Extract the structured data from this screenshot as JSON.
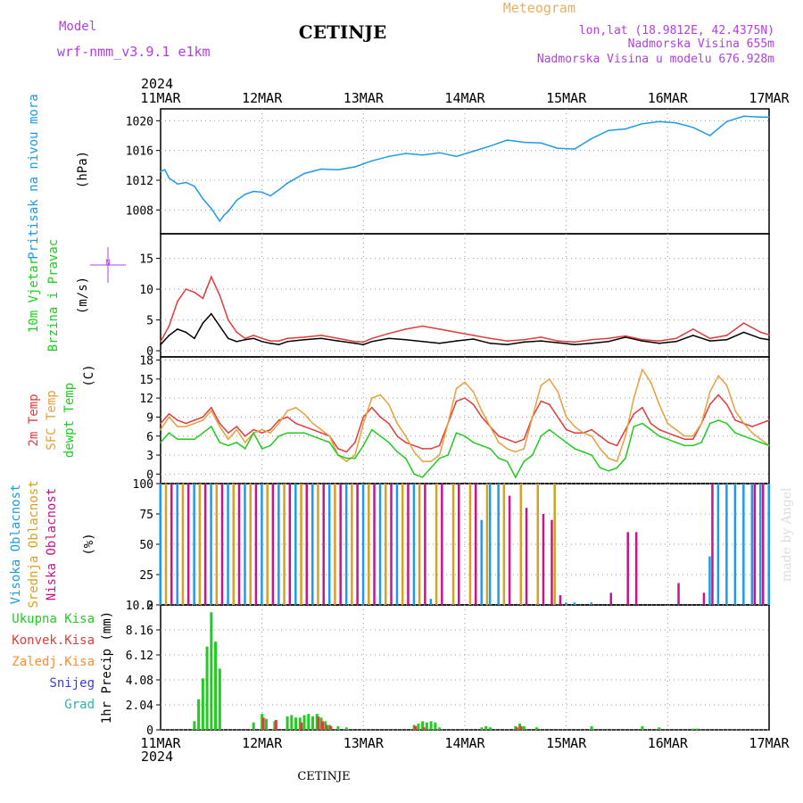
{
  "header": {
    "model_label": "Model",
    "model_name": "wrf-nmm_v3.9.1 e1km",
    "station": "CETINJE",
    "meteogram_label": "Meteogram",
    "lonlat": "lon,lat (18.9812E, 42.4375N)",
    "altitude": "Nadmorska Visina 655m",
    "model_altitude": "Nadmorska Visina u modelu 676.928m",
    "watermark": "made by Angel",
    "footer_station": "CETINJE"
  },
  "time_axis": {
    "year": "2024",
    "labels": [
      "11MAR",
      "12MAR",
      "13MAR",
      "14MAR",
      "15MAR",
      "16MAR",
      "17MAR"
    ],
    "hours": 144
  },
  "chart_data": [
    {
      "type": "line",
      "panel": "pressure",
      "ylabel_left": "Pritisak na nivou mora",
      "ylabel_unit": "(hPa)",
      "ylim": [
        1004.8,
        1021.6
      ],
      "yticks": [
        1008,
        1012,
        1016,
        1020
      ],
      "x_hours": [
        0,
        1,
        2,
        4,
        6,
        8,
        10,
        12,
        14,
        15,
        16,
        18,
        20,
        22,
        24,
        26,
        28,
        30,
        34,
        38,
        42,
        46,
        50,
        54,
        58,
        62,
        66,
        70,
        74,
        78,
        82,
        86,
        90,
        94,
        98,
        102,
        106,
        110,
        114,
        118,
        122,
        126,
        130,
        134,
        138,
        142,
        144
      ],
      "series": [
        {
          "color": "#1e9be6",
          "values": [
            1013.2,
            1013.4,
            1012.3,
            1011.5,
            1011.7,
            1011.2,
            1009.5,
            1008.2,
            1006.5,
            1007.3,
            1007.8,
            1009.3,
            1010.1,
            1010.5,
            1010.4,
            1009.9,
            1010.7,
            1011.6,
            1012.9,
            1013.5,
            1013.4,
            1013.8,
            1014.6,
            1015.2,
            1015.6,
            1015.4,
            1015.7,
            1015.2,
            1015.9,
            1016.6,
            1017.4,
            1017.1,
            1017.0,
            1016.3,
            1016.2,
            1017.6,
            1018.7,
            1018.9,
            1019.6,
            1019.9,
            1019.7,
            1019.1,
            1018.0,
            1019.9,
            1020.6,
            1020.5,
            1020.5
          ]
        }
      ]
    },
    {
      "type": "line",
      "panel": "wind",
      "ylabel_left": [
        "10m Vjetar",
        "Brzina i Pravac"
      ],
      "ylabel_unit": "(m/s)",
      "compass": "N",
      "ylim": [
        -1,
        19
      ],
      "yticks": [
        0,
        5,
        10,
        15
      ],
      "x_hours": [
        0,
        2,
        4,
        6,
        8,
        10,
        12,
        14,
        16,
        18,
        20,
        22,
        24,
        26,
        28,
        30,
        34,
        38,
        42,
        46,
        48,
        50,
        54,
        58,
        62,
        66,
        70,
        74,
        78,
        82,
        86,
        90,
        94,
        98,
        102,
        106,
        110,
        114,
        118,
        122,
        126,
        130,
        134,
        138,
        142,
        144
      ],
      "series": [
        {
          "color": "#000000",
          "values": [
            1.0,
            2.5,
            3.5,
            3.0,
            2.0,
            4.5,
            6.0,
            4.0,
            2.0,
            1.5,
            1.8,
            2.0,
            1.5,
            1.2,
            1.0,
            1.5,
            1.8,
            2.0,
            1.6,
            1.2,
            1.0,
            1.5,
            2.0,
            1.8,
            1.5,
            1.2,
            1.6,
            1.9,
            1.2,
            1.0,
            1.4,
            1.6,
            1.3,
            1.0,
            1.2,
            1.5,
            2.2,
            1.6,
            1.2,
            1.5,
            2.5,
            1.6,
            1.8,
            3.0,
            2.0,
            1.8
          ]
        },
        {
          "color": "#e03c3c",
          "values": [
            1.5,
            4.0,
            8.0,
            10.0,
            9.5,
            8.5,
            12.0,
            9.0,
            5.0,
            3.0,
            2.0,
            2.5,
            2.0,
            1.6,
            1.6,
            2.0,
            2.2,
            2.5,
            2.0,
            1.5,
            1.4,
            2.0,
            2.8,
            3.5,
            4.0,
            3.5,
            3.0,
            2.5,
            2.0,
            1.6,
            1.8,
            2.2,
            1.6,
            1.4,
            1.8,
            2.0,
            2.4,
            1.8,
            1.6,
            2.0,
            3.5,
            2.0,
            2.5,
            4.5,
            3.0,
            2.6
          ]
        }
      ]
    },
    {
      "type": "line",
      "panel": "temperature",
      "ylabel_left": [
        "2m Temp",
        "SFC Temp",
        "dewpt Temp"
      ],
      "ylabel_unit": "(C)",
      "ylim": [
        -1.5,
        18.5
      ],
      "yticks": [
        0,
        3,
        6,
        9,
        12,
        15,
        18
      ],
      "x_hours": [
        0,
        2,
        4,
        6,
        8,
        10,
        12,
        14,
        16,
        18,
        20,
        22,
        24,
        26,
        28,
        30,
        32,
        34,
        36,
        38,
        40,
        42,
        44,
        46,
        48,
        50,
        52,
        54,
        56,
        58,
        60,
        62,
        64,
        66,
        68,
        70,
        72,
        74,
        76,
        78,
        80,
        82,
        84,
        86,
        88,
        90,
        92,
        94,
        96,
        98,
        100,
        102,
        104,
        106,
        108,
        110,
        112,
        114,
        116,
        118,
        120,
        122,
        124,
        126,
        128,
        130,
        132,
        134,
        136,
        138,
        140,
        142,
        144
      ],
      "series": [
        {
          "name": "2m Temp",
          "color": "#e03c3c",
          "values": [
            8.0,
            9.5,
            8.5,
            8.0,
            8.5,
            9.0,
            10.5,
            8.0,
            6.5,
            7.5,
            6.0,
            7.0,
            6.5,
            7.0,
            8.5,
            9.0,
            8.0,
            7.5,
            7.0,
            6.5,
            6.0,
            4.0,
            3.5,
            5.0,
            9.0,
            10.5,
            9.0,
            8.0,
            6.0,
            5.0,
            4.5,
            4.0,
            4.0,
            4.5,
            8.0,
            11.5,
            12.0,
            11.0,
            9.0,
            7.5,
            6.0,
            5.5,
            5.0,
            5.5,
            9.0,
            11.5,
            11.0,
            9.0,
            7.0,
            6.5,
            6.5,
            7.0,
            6.0,
            5.0,
            4.5,
            7.0,
            9.5,
            10.5,
            8.0,
            7.0,
            6.5,
            6.0,
            5.5,
            5.5,
            8.0,
            11.0,
            12.5,
            11.0,
            8.5,
            8.0,
            7.5,
            8.0,
            8.5
          ]
        },
        {
          "name": "SFC Temp",
          "color": "#e6a03c",
          "values": [
            7.0,
            9.0,
            7.5,
            7.5,
            8.0,
            8.5,
            10.0,
            7.5,
            5.5,
            7.0,
            5.0,
            6.5,
            7.0,
            6.5,
            8.0,
            10.0,
            10.5,
            9.5,
            8.0,
            7.0,
            6.0,
            3.0,
            2.0,
            3.0,
            8.0,
            12.0,
            12.5,
            11.0,
            8.0,
            6.0,
            3.5,
            2.0,
            2.0,
            3.0,
            8.0,
            13.5,
            14.5,
            13.0,
            10.0,
            7.5,
            5.0,
            4.0,
            3.5,
            4.0,
            9.0,
            14.0,
            15.0,
            13.0,
            9.0,
            7.5,
            6.5,
            6.0,
            4.0,
            2.5,
            2.0,
            6.0,
            12.0,
            16.5,
            14.5,
            11.0,
            8.0,
            7.0,
            6.0,
            6.0,
            8.0,
            13.0,
            15.5,
            14.0,
            10.0,
            8.0,
            6.5,
            5.5,
            4.5
          ]
        },
        {
          "name": "dewpt Temp",
          "color": "#1fcc1f",
          "values": [
            5.0,
            6.5,
            5.5,
            5.5,
            5.5,
            6.5,
            7.5,
            5.0,
            4.5,
            5.0,
            4.0,
            6.5,
            4.0,
            4.5,
            6.0,
            6.5,
            6.5,
            6.5,
            6.0,
            5.5,
            5.0,
            3.0,
            2.5,
            2.5,
            4.5,
            7.0,
            6.0,
            5.0,
            3.5,
            2.5,
            0.0,
            -0.5,
            1.0,
            2.5,
            3.0,
            6.5,
            6.0,
            5.0,
            4.5,
            4.0,
            2.5,
            2.0,
            -0.5,
            2.0,
            3.0,
            6.0,
            7.0,
            6.0,
            5.0,
            4.0,
            3.5,
            3.0,
            1.0,
            0.5,
            1.0,
            2.5,
            7.5,
            8.0,
            7.0,
            6.0,
            5.5,
            5.0,
            4.5,
            4.5,
            5.0,
            8.0,
            8.5,
            8.0,
            6.5,
            6.0,
            5.5,
            5.0,
            4.5
          ]
        }
      ]
    },
    {
      "type": "bar",
      "panel": "cloud_cover",
      "ylabel_left": [
        "Visoka Oblacnost",
        "Srednja Oblacnost",
        "Niska Oblacnost"
      ],
      "ylabel_unit": "(%)",
      "ylim": [
        0,
        100
      ],
      "yticks": [
        0,
        25,
        50,
        75,
        100
      ],
      "series": [
        {
          "name": "Visoka Oblacnost",
          "color": "#1e9be6",
          "x_hours": [
            0,
            4,
            8,
            12,
            16,
            20,
            24,
            28,
            32,
            36,
            40,
            44,
            48,
            52,
            56,
            60,
            64,
            76,
            78,
            80,
            96,
            98,
            102,
            130,
            132,
            134,
            136,
            138,
            140,
            142,
            144
          ],
          "values": [
            100,
            100,
            100,
            100,
            100,
            100,
            100,
            100,
            100,
            100,
            100,
            100,
            100,
            100,
            100,
            100,
            5,
            70,
            100,
            100,
            2,
            2,
            2,
            40,
            100,
            100,
            100,
            100,
            100,
            100,
            100
          ]
        },
        {
          "name": "Srednja Oblacnost",
          "color": "#d8a020",
          "x_hours": [
            1,
            5,
            9,
            13,
            17,
            21,
            25,
            29,
            33,
            37,
            41,
            45,
            49,
            53,
            57,
            61,
            65,
            69,
            73,
            77,
            81,
            85,
            89,
            93
          ],
          "values": [
            100,
            100,
            100,
            100,
            100,
            100,
            100,
            100,
            100,
            100,
            100,
            100,
            100,
            100,
            100,
            100,
            100,
            100,
            100,
            100,
            100,
            100,
            100,
            100
          ]
        },
        {
          "name": "Niska Oblacnost",
          "color": "#c8148c",
          "x_hours": [
            2,
            6,
            10,
            14,
            18,
            22,
            26,
            30,
            34,
            38,
            42,
            46,
            50,
            54,
            58,
            62,
            66,
            70,
            74,
            82,
            86,
            90,
            92,
            94,
            106,
            110,
            112,
            122,
            128,
            130,
            140,
            142
          ],
          "values": [
            100,
            100,
            100,
            100,
            100,
            100,
            100,
            100,
            100,
            100,
            100,
            100,
            100,
            100,
            100,
            100,
            100,
            100,
            100,
            90,
            80,
            75,
            70,
            8,
            10,
            60,
            60,
            18,
            10,
            100,
            100,
            100
          ]
        }
      ]
    },
    {
      "type": "bar",
      "panel": "precipitation",
      "ylabel_left": [
        "Ukupna Kisa",
        "Konvek.Kisa",
        "Zaledj.Kisa",
        "Snijeg",
        "Grad"
      ],
      "ylabel_colors": [
        "#1fcc1f",
        "#e03c3c",
        "#ff8c28",
        "#3c3cdc",
        "#28b4b4"
      ],
      "ylabel_unit": "1hr Precip (mm)",
      "ylim": [
        0,
        10.2
      ],
      "yticks": [
        0,
        2.04,
        4.08,
        6.12,
        8.16,
        10.2
      ],
      "ytick_labels": [
        "0",
        "2.04",
        "4.08",
        "6.12",
        "8.16",
        "10.2"
      ],
      "series": [
        {
          "name": "Ukupna Kisa",
          "color": "#1fcc1f",
          "x_hours": [
            8,
            9,
            10,
            11,
            12,
            13,
            14,
            22,
            24,
            25,
            27,
            30,
            31,
            32,
            33,
            34,
            35,
            36,
            37,
            38,
            39,
            40,
            42,
            44,
            60,
            61,
            62,
            63,
            64,
            65,
            66,
            76,
            77,
            78,
            84,
            85,
            86,
            89,
            102,
            114,
            118,
            126,
            127
          ],
          "values": [
            0.7,
            2.5,
            4.2,
            6.8,
            9.6,
            7.2,
            5.0,
            0.6,
            1.3,
            0.9,
            0.7,
            1.1,
            1.2,
            1.0,
            1.0,
            1.2,
            1.3,
            1.1,
            1.3,
            1.0,
            0.7,
            0.4,
            0.3,
            0.2,
            0.4,
            0.5,
            0.7,
            0.6,
            0.7,
            0.6,
            0.2,
            0.2,
            0.3,
            0.2,
            0.3,
            0.5,
            0.3,
            0.2,
            0.3,
            0.3,
            0.2,
            0.1,
            0.1
          ]
        },
        {
          "name": "Konvek.Kisa",
          "color": "#e03c3c",
          "x_hours": [
            24,
            27,
            33,
            37,
            38,
            39,
            40,
            60,
            62,
            84,
            85
          ],
          "values": [
            1.0,
            0.8,
            0.6,
            1.1,
            0.7,
            0.4,
            0.3,
            0.3,
            0.2,
            0.2,
            0.3
          ]
        }
      ]
    }
  ]
}
